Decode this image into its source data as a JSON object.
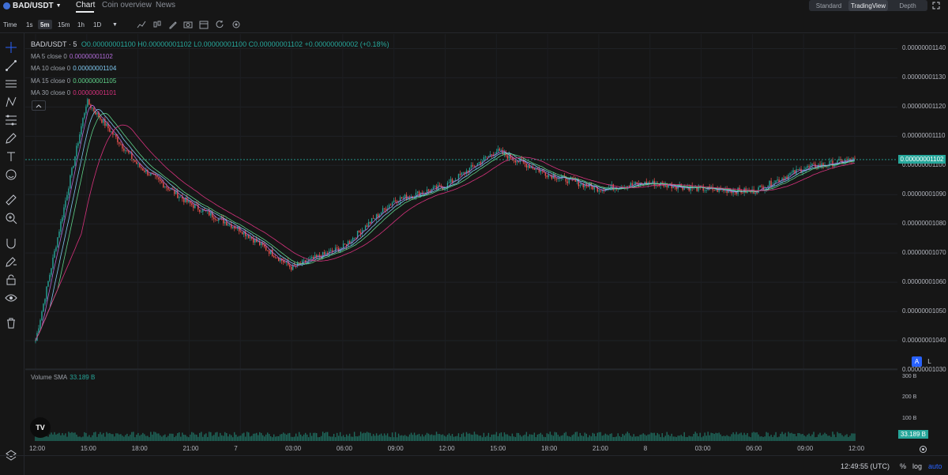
{
  "header": {
    "pair": "BAD/USDT",
    "tabs": [
      "Chart",
      "Coin overview",
      "News"
    ],
    "active_tab": "Chart",
    "views": [
      "Standard",
      "TradingView",
      "Depth"
    ],
    "active_view": "TradingView"
  },
  "toolbar": {
    "time_label": "Time",
    "intervals": [
      "1s",
      "5m",
      "15m",
      "1h",
      "1D"
    ],
    "active_interval": "5m"
  },
  "legend": {
    "symbol": "BAD/USDT · 5",
    "ohlc": "O0.00000001100 H0.00000001102 L0.00000001100 C0.00000001102 +0.00000000002 (+0.18%)",
    "ma5_label": "MA 5 close 0",
    "ma5_value": "0.00000001102",
    "ma10_label": "MA 10 close 0",
    "ma10_value": "0.00000001104",
    "ma15_label": "MA 15 close 0",
    "ma15_value": "0.00000001105",
    "ma30_label": "MA 30 close 0",
    "ma30_value": "0.00000001101",
    "volume_label": "Volume SMA",
    "volume_value": "33.189 B"
  },
  "price_axis": [
    "0.00000001140",
    "0.00000001130",
    "0.00000001120",
    "0.00000001110",
    "0.00000001100",
    "0.00000001090",
    "0.00000001080",
    "0.00000001070",
    "0.00000001060",
    "0.00000001050",
    "0.00000001040",
    "0.00000001030"
  ],
  "current_price": "0.00000001102",
  "volume_axis": [
    "300 B",
    "200 B",
    "100 B"
  ],
  "volume_current": "33.189 B",
  "time_axis": [
    "12:00",
    "15:00",
    "18:00",
    "21:00",
    "7",
    "03:00",
    "06:00",
    "09:00",
    "12:00",
    "15:00",
    "18:00",
    "21:00",
    "8",
    "03:00",
    "06:00",
    "09:00",
    "12:00"
  ],
  "footer": {
    "clock": "12:49:55 (UTC)",
    "percent": "%",
    "log": "log",
    "auto": "auto"
  },
  "scale_buttons": {
    "a": "A",
    "l": "L"
  },
  "colors": {
    "up": "#26a69a",
    "down": "#ef5350",
    "ma5": "#b06ad8",
    "ma10": "#7ec8f0",
    "ma15": "#5fd38a",
    "ma30": "#d8327d",
    "accent": "#2962ff"
  },
  "chart_data": {
    "type": "candlestick",
    "interval": "5m",
    "x": [
      "12:00",
      "15:00",
      "18:00",
      "21:00",
      "7",
      "03:00",
      "06:00",
      "09:00",
      "12:00",
      "15:00",
      "18:00",
      "21:00",
      "8",
      "03:00",
      "06:00",
      "09:00",
      "12:00"
    ],
    "close": [
      1.04e-08,
      1.122e-08,
      1.1e-08,
      1.087e-08,
      1.078e-08,
      1.065e-08,
      1.072e-08,
      1.088e-08,
      1.093e-08,
      1.105e-08,
      1.097e-08,
      1.092e-08,
      1.094e-08,
      1.092e-08,
      1.091e-08,
      1.099e-08,
      1.102e-08
    ],
    "ylim": [
      1.03e-08,
      1.145e-08
    ],
    "volume_ylim": [
      0,
      330
    ]
  }
}
